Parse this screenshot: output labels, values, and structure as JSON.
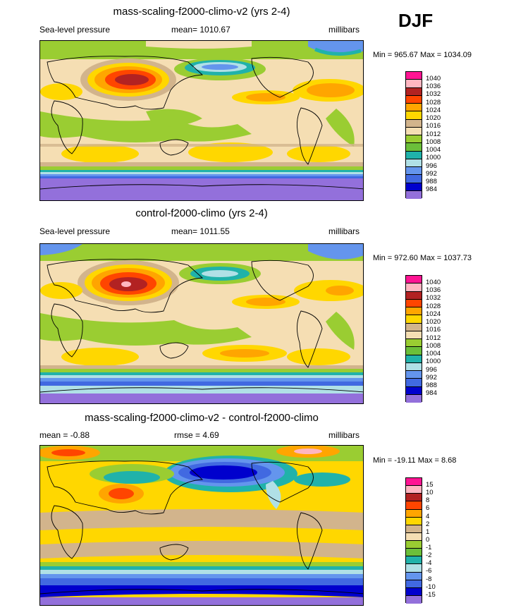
{
  "season": "DJF",
  "panels": [
    {
      "title": "mass-scaling-f2000-climo-v2 (yrs 2-4)",
      "left_label": "Sea-level pressure",
      "center_label": "mean= 1010.67",
      "right_label": "millibars",
      "minmax": "Min = 965.67 Max = 1034.09"
    },
    {
      "title": "control-f2000-climo (yrs 2-4)",
      "left_label": "Sea-level pressure",
      "center_label": "mean= 1011.55",
      "right_label": "millibars",
      "minmax": "Min = 972.60 Max = 1037.73"
    },
    {
      "title": "mass-scaling-f2000-climo-v2 - control-f2000-climo",
      "left_label": "mean =  -0.88",
      "center_label": "rmse =   4.69",
      "right_label": "millibars",
      "minmax": "Min = -19.11 Max =   8.68"
    }
  ],
  "chart_data": [
    {
      "type": "heatmap",
      "title": "mass-scaling-f2000-climo-v2 (yrs 2-4)",
      "variable": "Sea-level pressure",
      "units": "millibars",
      "mean": 1010.67,
      "min": 965.67,
      "max": 1034.09,
      "levels": [
        "1040",
        "1036",
        "1032",
        "1028",
        "1024",
        "1020",
        "1016",
        "1012",
        "1008",
        "1004",
        "1000",
        "996",
        "992",
        "988",
        "984"
      ],
      "colors": [
        "#ff1493",
        "#ffb6c1",
        "#b22222",
        "#ff4500",
        "#ffa500",
        "#ffd700",
        "#d2b48c",
        "#f5deb3",
        "#9acd32",
        "#6bbf3a",
        "#20b2aa",
        "#b0e0e6",
        "#6495ed",
        "#4169e1",
        "#0000cd",
        "#9370db"
      ]
    },
    {
      "type": "heatmap",
      "title": "control-f2000-climo (yrs 2-4)",
      "variable": "Sea-level pressure",
      "units": "millibars",
      "mean": 1011.55,
      "min": 972.6,
      "max": 1037.73,
      "levels": [
        "1040",
        "1036",
        "1032",
        "1028",
        "1024",
        "1020",
        "1016",
        "1012",
        "1008",
        "1004",
        "1000",
        "996",
        "992",
        "988",
        "984"
      ],
      "colors": [
        "#ff1493",
        "#ffb6c1",
        "#b22222",
        "#ff4500",
        "#ffa500",
        "#ffd700",
        "#d2b48c",
        "#f5deb3",
        "#9acd32",
        "#6bbf3a",
        "#20b2aa",
        "#b0e0e6",
        "#6495ed",
        "#4169e1",
        "#0000cd",
        "#9370db"
      ]
    },
    {
      "type": "heatmap",
      "title": "mass-scaling-f2000-climo-v2 - control-f2000-climo",
      "units": "millibars",
      "mean": -0.88,
      "rmse": 4.69,
      "min": -19.11,
      "max": 8.68,
      "levels": [
        "15",
        "10",
        "8",
        "6",
        "4",
        "2",
        "1",
        "0",
        "-1",
        "-2",
        "-4",
        "-6",
        "-8",
        "-10",
        "-15"
      ],
      "colors": [
        "#ff1493",
        "#ffb6c1",
        "#b22222",
        "#ff4500",
        "#ffa500",
        "#ffd700",
        "#d2b48c",
        "#f5deb3",
        "#9acd32",
        "#6bbf3a",
        "#20b2aa",
        "#b0e0e6",
        "#6495ed",
        "#4169e1",
        "#0000cd",
        "#9370db"
      ]
    }
  ]
}
